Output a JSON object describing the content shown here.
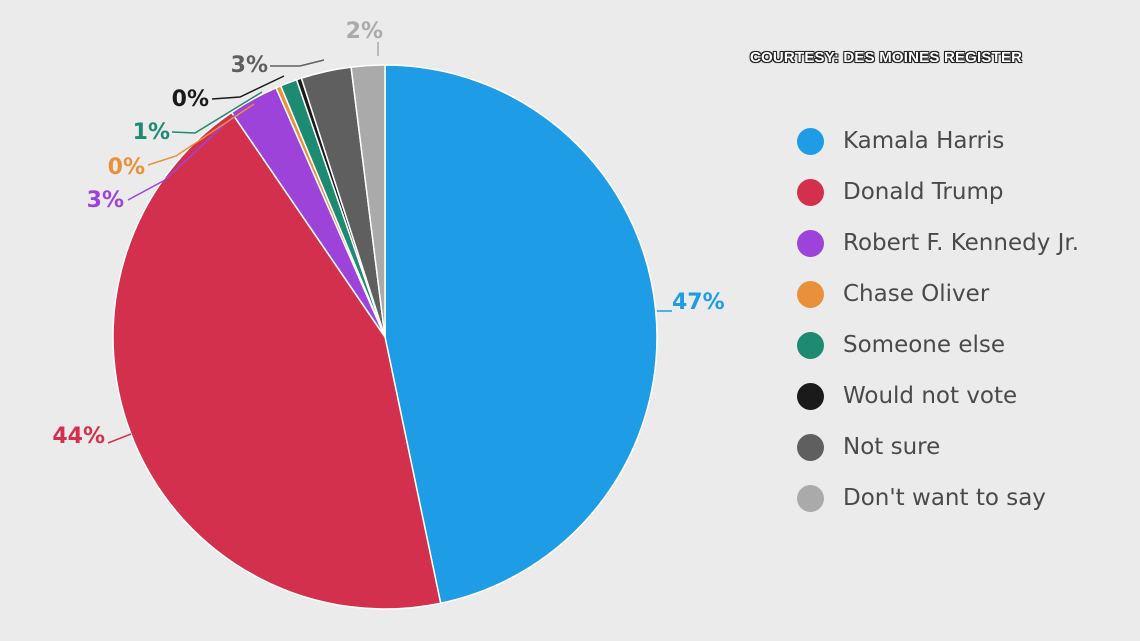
{
  "courtesy": "COURTESY: DES MOINES REGISTER",
  "chart_data": {
    "type": "pie",
    "title": "",
    "legend_position": "right",
    "slices": [
      {
        "name": "Kamala Harris",
        "value": 47,
        "label": "47%",
        "color": "#1e9de6"
      },
      {
        "name": "Donald Trump",
        "value": 44,
        "label": "44%",
        "color": "#d3304d"
      },
      {
        "name": "Robert F. Kennedy Jr.",
        "value": 3,
        "label": "3%",
        "color": "#9e43d9"
      },
      {
        "name": "Chase Oliver",
        "value": 0.3,
        "label": "0%",
        "color": "#e8913a"
      },
      {
        "name": "Someone else",
        "value": 1,
        "label": "1%",
        "color": "#1d8a72"
      },
      {
        "name": "Would not vote",
        "value": 0.3,
        "label": "0%",
        "color": "#1a1a1a"
      },
      {
        "name": "Not sure",
        "value": 3,
        "label": "3%",
        "color": "#5f5f5f"
      },
      {
        "name": "Don't want to say",
        "value": 2,
        "label": "2%",
        "color": "#aaaaaa"
      }
    ]
  }
}
